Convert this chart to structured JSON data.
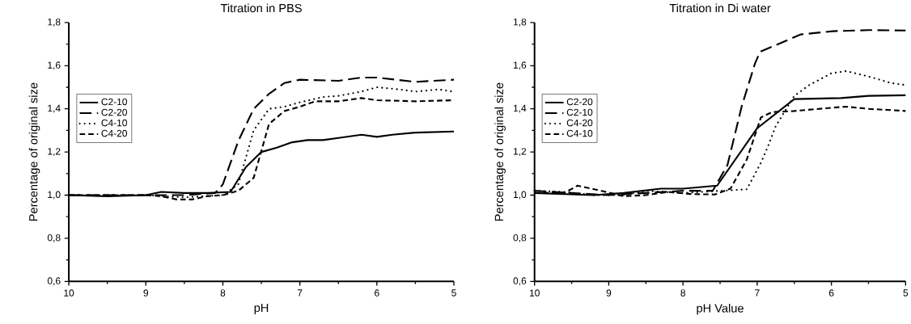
{
  "chart_data": [
    {
      "type": "line",
      "title": "Titration in PBS",
      "xlabel": "pH",
      "ylabel": "Percentage of original size",
      "xlim": [
        10,
        5
      ],
      "xticks": [
        10,
        9,
        8,
        7,
        6,
        5
      ],
      "ylim": [
        0.6,
        1.8
      ],
      "yticks": [
        {
          "value": 0.6,
          "label": "0,6"
        },
        {
          "value": 0.8,
          "label": "0,8"
        },
        {
          "value": 1.0,
          "label": "1,0"
        },
        {
          "value": 1.2,
          "label": "1,2"
        },
        {
          "value": 1.4,
          "label": "1,4"
        },
        {
          "value": 1.6,
          "label": "1,6"
        },
        {
          "value": 1.8,
          "label": "1,8"
        }
      ],
      "legend": "left",
      "marker": "none",
      "color": "#000000",
      "series": [
        {
          "name": "C2-10",
          "line_style": "solid",
          "x": [
            10,
            9.5,
            9,
            8.8,
            8.5,
            8.2,
            7.9,
            7.7,
            7.5,
            7.3,
            7.1,
            6.9,
            6.7,
            6.5,
            6.2,
            6.0,
            5.8,
            5.5,
            5
          ],
          "values": [
            1.0,
            0.995,
            1.0,
            1.015,
            1.01,
            1.01,
            1.015,
            1.13,
            1.2,
            1.22,
            1.245,
            1.255,
            1.255,
            1.265,
            1.28,
            1.27,
            1.28,
            1.29,
            1.295
          ]
        },
        {
          "name": "C2-20",
          "line_style": "long dashed",
          "x": [
            10,
            9,
            8.5,
            8.1,
            8.0,
            7.8,
            7.6,
            7.4,
            7.2,
            7.0,
            6.5,
            6.2,
            6.0,
            5.5,
            5
          ],
          "values": [
            1.0,
            1.0,
            1.0,
            1.01,
            1.05,
            1.25,
            1.4,
            1.47,
            1.52,
            1.535,
            1.53,
            1.545,
            1.545,
            1.525,
            1.535
          ]
        },
        {
          "name": "C4-10",
          "line_style": "dotted",
          "x": [
            10,
            9,
            8.5,
            8,
            7.8,
            7.6,
            7.4,
            7.2,
            7.0,
            6.7,
            6.5,
            6.2,
            6.0,
            5.7,
            5.5,
            5.2,
            5
          ],
          "values": [
            1.0,
            1.0,
            0.99,
            1.0,
            1.05,
            1.3,
            1.4,
            1.41,
            1.43,
            1.455,
            1.46,
            1.48,
            1.5,
            1.49,
            1.48,
            1.49,
            1.48
          ]
        },
        {
          "name": "C4-20",
          "line_style": "dashed",
          "x": [
            10,
            9,
            8.8,
            8.6,
            8.4,
            8.2,
            8.0,
            7.8,
            7.6,
            7.4,
            7.2,
            7.0,
            6.8,
            6.5,
            6.2,
            6.0,
            5.5,
            5
          ],
          "values": [
            1.0,
            1.0,
            0.995,
            0.98,
            0.98,
            0.995,
            1.0,
            1.02,
            1.08,
            1.33,
            1.39,
            1.41,
            1.435,
            1.435,
            1.45,
            1.44,
            1.435,
            1.44
          ]
        }
      ]
    },
    {
      "type": "line",
      "title": "Titration in Di water",
      "xlabel": "pH Value",
      "ylabel": "Percentage of original size",
      "xlim": [
        10,
        5
      ],
      "xticks": [
        10,
        9,
        8,
        7,
        6,
        5
      ],
      "ylim": [
        0.6,
        1.8
      ],
      "yticks": [
        {
          "value": 0.6,
          "label": "0,6"
        },
        {
          "value": 0.8,
          "label": "0,8"
        },
        {
          "value": 1.0,
          "label": "1,0"
        },
        {
          "value": 1.2,
          "label": "1,2"
        },
        {
          "value": 1.4,
          "label": "1,4"
        },
        {
          "value": 1.6,
          "label": "1,6"
        },
        {
          "value": 1.8,
          "label": "1,8"
        }
      ],
      "legend": "left",
      "marker": "none",
      "color": "#000000",
      "series": [
        {
          "name": "C2-20",
          "line_style": "solid",
          "x": [
            10,
            9.6,
            9.2,
            8.8,
            8.3,
            8.0,
            7.54,
            7.0,
            6.5,
            5.87,
            5.5,
            5
          ],
          "values": [
            1.01,
            1.005,
            1.0,
            1.01,
            1.03,
            1.03,
            1.044,
            1.31,
            1.445,
            1.45,
            1.46,
            1.463
          ]
        },
        {
          "name": "C2-10",
          "line_style": "long dashed",
          "x": [
            10,
            9.5,
            9,
            8.5,
            8,
            7.6,
            7.4,
            7.21,
            7.03,
            6.96,
            6.41,
            5.98,
            5.5,
            5
          ],
          "values": [
            1.02,
            1.01,
            1.0,
            1.01,
            1.02,
            1.02,
            1.14,
            1.41,
            1.61,
            1.665,
            1.745,
            1.76,
            1.765,
            1.763
          ]
        },
        {
          "name": "C4-20",
          "line_style": "dotted",
          "x": [
            10,
            9.6,
            9.2,
            8.8,
            8.5,
            8.0,
            7.14,
            7.05,
            6.95,
            6.85,
            6.75,
            6.5,
            6.3,
            6.0,
            5.8,
            5.5,
            5.2,
            5
          ],
          "values": [
            1.02,
            1.015,
            1.0,
            1.0,
            1.02,
            1.01,
            1.027,
            1.085,
            1.15,
            1.23,
            1.32,
            1.46,
            1.51,
            1.565,
            1.575,
            1.55,
            1.52,
            1.51
          ]
        },
        {
          "name": "C4-10",
          "line_style": "dashed",
          "x": [
            10,
            9.6,
            9.42,
            9.1,
            8.8,
            8.5,
            8.2,
            7.9,
            7.57,
            7.36,
            7.14,
            6.95,
            6.8,
            6.5,
            6.0,
            5.8,
            5.5,
            5
          ],
          "values": [
            1.01,
            1.01,
            1.044,
            1.02,
            0.995,
            1.0,
            1.015,
            1.005,
            1.003,
            1.03,
            1.165,
            1.36,
            1.385,
            1.39,
            1.405,
            1.41,
            1.4,
            1.39
          ]
        }
      ]
    }
  ]
}
